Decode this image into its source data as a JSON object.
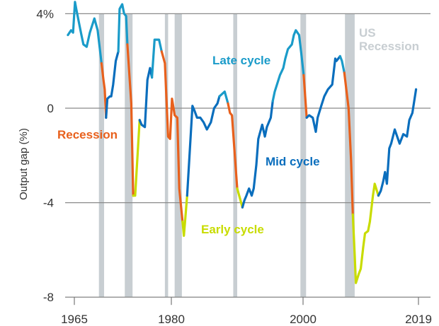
{
  "chart_data": {
    "type": "line",
    "title": "",
    "xlabel": "",
    "ylabel": "Output gap (%)",
    "ylim": [
      -8,
      4
    ],
    "y_ticks": [
      {
        "value": 4,
        "label": "4%"
      },
      {
        "value": 0,
        "label": "0"
      },
      {
        "value": -4,
        "label": "-4"
      },
      {
        "value": -8,
        "label": "-8"
      }
    ],
    "x_ticks": [
      {
        "value": 1965,
        "label": "1965"
      },
      {
        "value": 1980,
        "label": "1980"
      },
      {
        "value": 2000,
        "label": "2000"
      },
      {
        "value": 2019,
        "label": "2019"
      }
    ],
    "grid": "horizontal",
    "phase_colors": {
      "L": "#1a9bc9",
      "R": "#e8601c",
      "E": "#c8dc00",
      "M": "#0a6ebd"
    },
    "recession_color": "#c8ced2",
    "annotations": [
      {
        "phase": "L",
        "text": "Late cycle"
      },
      {
        "phase": "R",
        "text": "Recession"
      },
      {
        "phase": "M",
        "text": "Mid cycle"
      },
      {
        "phase": "E",
        "text": "Early cycle"
      }
    ],
    "recession_label": [
      "US",
      "Recession"
    ],
    "recessions": [
      [
        1968.8,
        1969.6
      ],
      [
        1972.8,
        1974.0
      ],
      [
        1979.0,
        1979.5
      ],
      [
        1980.5,
        1981.6
      ],
      [
        1989.4,
        1990.0
      ],
      [
        1999.6,
        2000.5
      ],
      [
        2006.9,
        2008.5
      ]
    ],
    "series_points": [
      [
        1964.0,
        3.1,
        "L"
      ],
      [
        1964.5,
        3.3,
        "L"
      ],
      [
        1964.8,
        3.2,
        "L"
      ],
      [
        1965.1,
        4.5,
        "L"
      ],
      [
        1965.3,
        4.2,
        "L"
      ],
      [
        1965.8,
        3.5,
        "L"
      ],
      [
        1966.1,
        3.1,
        "L"
      ],
      [
        1966.4,
        2.7,
        "L"
      ],
      [
        1966.9,
        2.6,
        "L"
      ],
      [
        1967.4,
        3.2,
        "L"
      ],
      [
        1968.1,
        3.8,
        "L"
      ],
      [
        1968.6,
        3.3,
        "L"
      ],
      [
        1969.2,
        1.9,
        "L"
      ],
      [
        1969.5,
        1.2,
        "R"
      ],
      [
        1969.7,
        0.8,
        "R"
      ],
      [
        1969.9,
        -0.4,
        "R"
      ],
      [
        1970.1,
        0.4,
        "M"
      ],
      [
        1970.5,
        0.5,
        "M"
      ],
      [
        1970.7,
        0.5,
        "M"
      ],
      [
        1971.0,
        1.0,
        "M"
      ],
      [
        1971.4,
        2.0,
        "M"
      ],
      [
        1971.8,
        2.4,
        "M"
      ],
      [
        1972.0,
        4.2,
        "L"
      ],
      [
        1972.4,
        4.4,
        "L"
      ],
      [
        1972.7,
        4.0,
        "L"
      ],
      [
        1973.0,
        3.9,
        "L"
      ],
      [
        1973.2,
        2.7,
        "L"
      ],
      [
        1973.8,
        0.2,
        "R"
      ],
      [
        1974.1,
        -3.7,
        "R"
      ],
      [
        1974.4,
        -3.7,
        "E"
      ],
      [
        1975.1,
        -0.5,
        "E"
      ],
      [
        1975.4,
        -0.7,
        "M"
      ],
      [
        1975.9,
        -0.8,
        "M"
      ],
      [
        1976.3,
        1.2,
        "M"
      ],
      [
        1976.7,
        1.7,
        "M"
      ],
      [
        1977.0,
        1.3,
        "M"
      ],
      [
        1977.4,
        2.9,
        "L"
      ],
      [
        1978.1,
        2.9,
        "L"
      ],
      [
        1978.5,
        2.4,
        "L"
      ],
      [
        1979.0,
        1.9,
        "R"
      ],
      [
        1979.5,
        -1.2,
        "R"
      ],
      [
        1979.8,
        -1.3,
        "R"
      ],
      [
        1980.1,
        0.4,
        "R"
      ],
      [
        1980.5,
        -0.3,
        "R"
      ],
      [
        1980.9,
        -0.4,
        "R"
      ],
      [
        1981.2,
        -3.4,
        "R"
      ],
      [
        1981.7,
        -4.8,
        "R"
      ],
      [
        1981.9,
        -5.4,
        "E"
      ],
      [
        1982.4,
        -3.7,
        "E"
      ],
      [
        1983.2,
        0.1,
        "M"
      ],
      [
        1983.5,
        -0.1,
        "M"
      ],
      [
        1983.9,
        -0.4,
        "M"
      ],
      [
        1984.4,
        -0.4,
        "M"
      ],
      [
        1984.9,
        -0.6,
        "M"
      ],
      [
        1985.4,
        -0.9,
        "M"
      ],
      [
        1986.0,
        -0.6,
        "M"
      ],
      [
        1986.5,
        0.0,
        "M"
      ],
      [
        1987.0,
        0.2,
        "M"
      ],
      [
        1987.3,
        0.5,
        "M"
      ],
      [
        1988.1,
        0.7,
        "L"
      ],
      [
        1988.6,
        0.2,
        "L"
      ],
      [
        1988.9,
        -0.2,
        "R"
      ],
      [
        1989.2,
        -0.3,
        "R"
      ],
      [
        1990.0,
        -3.4,
        "R"
      ],
      [
        1990.3,
        -3.7,
        "E"
      ],
      [
        1990.8,
        -4.2,
        "E"
      ],
      [
        1991.1,
        -3.9,
        "M"
      ],
      [
        1991.4,
        -3.7,
        "M"
      ],
      [
        1991.8,
        -3.4,
        "M"
      ],
      [
        1992.2,
        -3.7,
        "M"
      ],
      [
        1992.5,
        -3.4,
        "M"
      ],
      [
        1992.9,
        -2.4,
        "M"
      ],
      [
        1993.2,
        -1.3,
        "M"
      ],
      [
        1993.8,
        -0.7,
        "M"
      ],
      [
        1994.2,
        -1.2,
        "M"
      ],
      [
        1994.5,
        -0.8,
        "M"
      ],
      [
        1995.1,
        -0.4,
        "M"
      ],
      [
        1995.4,
        0.3,
        "M"
      ],
      [
        1995.7,
        0.7,
        "L"
      ],
      [
        1996.5,
        1.4,
        "L"
      ],
      [
        1997.0,
        1.7,
        "L"
      ],
      [
        1997.3,
        2.1,
        "L"
      ],
      [
        1997.7,
        2.5,
        "L"
      ],
      [
        1998.3,
        2.7,
        "L"
      ],
      [
        1998.6,
        3.1,
        "L"
      ],
      [
        1998.9,
        3.3,
        "L"
      ],
      [
        1999.4,
        3.1,
        "L"
      ],
      [
        1999.7,
        2.4,
        "L"
      ],
      [
        2000.1,
        1.4,
        "L"
      ],
      [
        2000.6,
        -0.4,
        "R"
      ],
      [
        2001.0,
        -0.3,
        "M"
      ],
      [
        2001.6,
        -0.4,
        "M"
      ],
      [
        2002.1,
        -1.0,
        "M"
      ],
      [
        2002.4,
        -0.4,
        "M"
      ],
      [
        2003.0,
        0.1,
        "M"
      ],
      [
        2003.5,
        0.5,
        "M"
      ],
      [
        2004.1,
        0.8,
        "M"
      ],
      [
        2004.8,
        1.0,
        "M"
      ],
      [
        2005.3,
        2.1,
        "M"
      ],
      [
        2005.5,
        2.0,
        "M"
      ],
      [
        2006.1,
        2.2,
        "M"
      ],
      [
        2006.4,
        2.0,
        "L"
      ],
      [
        2006.8,
        1.5,
        "L"
      ],
      [
        2007.5,
        0.0,
        "R"
      ],
      [
        2007.9,
        -2.2,
        "R"
      ],
      [
        2008.2,
        -4.5,
        "R"
      ],
      [
        2008.5,
        -6.2,
        "E"
      ],
      [
        2008.7,
        -7.4,
        "E"
      ],
      [
        2009.2,
        -7.0,
        "E"
      ],
      [
        2009.5,
        -6.8,
        "E"
      ],
      [
        2009.9,
        -5.9,
        "E"
      ],
      [
        2010.2,
        -5.3,
        "E"
      ],
      [
        2010.7,
        -5.2,
        "E"
      ],
      [
        2011.0,
        -4.8,
        "E"
      ],
      [
        2011.5,
        -3.7,
        "E"
      ],
      [
        2011.8,
        -3.2,
        "E"
      ],
      [
        2012.4,
        -3.7,
        "E"
      ],
      [
        2012.8,
        -3.5,
        "M"
      ],
      [
        2013.2,
        -3.1,
        "M"
      ],
      [
        2013.5,
        -2.7,
        "M"
      ],
      [
        2013.8,
        -3.2,
        "M"
      ],
      [
        2014.2,
        -1.7,
        "M"
      ],
      [
        2014.5,
        -1.5,
        "M"
      ],
      [
        2015.1,
        -0.9,
        "M"
      ],
      [
        2015.9,
        -1.5,
        "M"
      ],
      [
        2016.5,
        -1.1,
        "M"
      ],
      [
        2017.1,
        -1.2,
        "M"
      ],
      [
        2017.5,
        -0.5,
        "M"
      ],
      [
        2018.0,
        -0.2,
        "M"
      ],
      [
        2018.6,
        0.8,
        "M"
      ]
    ]
  }
}
